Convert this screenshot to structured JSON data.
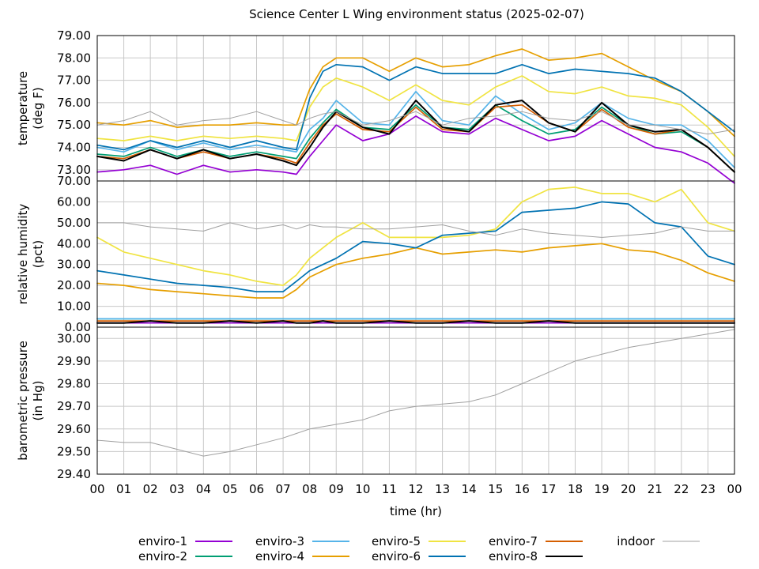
{
  "chart_data": {
    "type": "line",
    "title": "Science Center L Wing environment status (2025-02-07)",
    "xlabel": "time (hr)",
    "xlim": [
      0,
      24
    ],
    "x_ticks": [
      "00",
      "01",
      "02",
      "03",
      "04",
      "05",
      "06",
      "07",
      "08",
      "09",
      "10",
      "11",
      "12",
      "13",
      "14",
      "15",
      "16",
      "17",
      "18",
      "19",
      "20",
      "21",
      "22",
      "23",
      "00"
    ],
    "x": [
      0,
      1,
      2,
      3,
      4,
      5,
      6,
      7,
      7.5,
      8,
      8.5,
      9,
      10,
      11,
      12,
      13,
      14,
      15,
      16,
      17,
      18,
      19,
      20,
      21,
      22,
      23,
      24
    ],
    "panels": [
      {
        "ylabel": [
          "temperature",
          "(deg F)"
        ],
        "ylim": [
          72.5,
          79.0
        ],
        "y_ticks": [
          "73.00",
          "74.00",
          "75.00",
          "76.00",
          "77.00",
          "78.00",
          "79.00"
        ],
        "series": [
          {
            "name": "enviro-1",
            "color": "#9400d3",
            "values": [
              72.9,
              73.0,
              73.2,
              72.8,
              73.2,
              72.9,
              73.0,
              72.9,
              72.8,
              73.6,
              74.3,
              75.0,
              74.3,
              74.6,
              75.4,
              74.7,
              74.6,
              75.3,
              74.8,
              74.3,
              74.5,
              75.2,
              74.6,
              74.0,
              73.8,
              73.3,
              72.4
            ]
          },
          {
            "name": "enviro-2",
            "color": "#009e73",
            "values": [
              73.7,
              73.6,
              74.0,
              73.6,
              73.9,
              73.6,
              73.8,
              73.6,
              73.5,
              74.4,
              75.1,
              75.7,
              74.9,
              74.8,
              75.9,
              74.9,
              74.8,
              75.9,
              75.2,
              74.6,
              74.8,
              75.8,
              75.0,
              74.6,
              74.7,
              74.0,
              72.9
            ]
          },
          {
            "name": "enviro-3",
            "color": "#56b4e9",
            "values": [
              74.0,
              73.8,
              74.3,
              73.9,
              74.2,
              73.9,
              74.1,
              73.9,
              73.8,
              74.8,
              75.3,
              76.1,
              75.1,
              75.0,
              76.5,
              75.2,
              75.0,
              76.3,
              75.5,
              74.8,
              75.1,
              76.0,
              75.3,
              75.0,
              75.0,
              74.3,
              73.1
            ]
          },
          {
            "name": "enviro-4",
            "color": "#e69f00",
            "values": [
              75.1,
              75.0,
              75.2,
              74.9,
              75.0,
              75.0,
              75.1,
              75.0,
              75.0,
              76.6,
              77.6,
              78.0,
              78.0,
              77.4,
              78.0,
              77.6,
              77.7,
              78.1,
              78.4,
              77.9,
              78.0,
              78.2,
              77.6,
              77.0,
              76.5,
              75.6,
              74.5
            ]
          },
          {
            "name": "enviro-5",
            "color": "#f0e442",
            "values": [
              74.4,
              74.3,
              74.5,
              74.3,
              74.5,
              74.4,
              74.5,
              74.4,
              74.3,
              75.8,
              76.7,
              77.1,
              76.7,
              76.1,
              76.8,
              76.1,
              75.9,
              76.7,
              77.2,
              76.5,
              76.4,
              76.7,
              76.3,
              76.2,
              75.9,
              74.9,
              73.6
            ]
          },
          {
            "name": "enviro-6",
            "color": "#0072b2",
            "values": [
              74.1,
              73.9,
              74.3,
              74.0,
              74.3,
              74.0,
              74.3,
              74.0,
              73.9,
              76.2,
              77.4,
              77.7,
              77.6,
              77.0,
              77.6,
              77.3,
              77.3,
              77.3,
              77.7,
              77.3,
              77.5,
              77.4,
              77.3,
              77.1,
              76.5,
              75.6,
              74.7
            ]
          },
          {
            "name": "enviro-7",
            "color": "#d55e00",
            "values": [
              73.6,
              73.5,
              73.9,
              73.5,
              73.8,
              73.5,
              73.7,
              73.5,
              73.3,
              74.2,
              75.0,
              75.5,
              74.8,
              74.7,
              75.8,
              74.8,
              74.7,
              75.8,
              75.9,
              75.1,
              74.7,
              75.7,
              74.9,
              74.6,
              74.8,
              74.0,
              72.9
            ]
          },
          {
            "name": "enviro-8",
            "color": "#000000",
            "values": [
              73.6,
              73.4,
              73.9,
              73.5,
              73.9,
              73.5,
              73.7,
              73.4,
              73.2,
              74.0,
              74.9,
              75.6,
              74.9,
              74.6,
              76.1,
              74.9,
              74.7,
              75.9,
              76.1,
              75.1,
              74.7,
              76.0,
              75.0,
              74.7,
              74.8,
              74.0,
              72.9
            ]
          },
          {
            "name": "indoor",
            "color": "#a0a0a0",
            "values": [
              75.0,
              75.2,
              75.6,
              75.0,
              75.2,
              75.3,
              75.6,
              75.2,
              75.0,
              75.3,
              75.5,
              75.6,
              75.0,
              75.2,
              75.6,
              75.0,
              75.3,
              75.4,
              75.6,
              75.3,
              75.2,
              75.6,
              75.0,
              75.0,
              74.8,
              74.6,
              74.8
            ]
          }
        ]
      },
      {
        "ylabel": [
          "relative humidity",
          "(pct)"
        ],
        "ylim": [
          0,
          70
        ],
        "y_ticks": [
          "0.00",
          "10.00",
          "20.00",
          "30.00",
          "40.00",
          "50.00",
          "60.00",
          "70.00"
        ],
        "series": [
          {
            "name": "enviro-1",
            "color": "#9400d3",
            "values": [
              2,
              2,
              2,
              2,
              2,
              2,
              2,
              2,
              2,
              2,
              2,
              2,
              2,
              2,
              2,
              2,
              2,
              2,
              2,
              2,
              2,
              2,
              2,
              2,
              2,
              2,
              2
            ]
          },
          {
            "name": "enviro-2",
            "color": "#009e73",
            "values": [
              4,
              4,
              4,
              4,
              4,
              4,
              4,
              4,
              4,
              4,
              4,
              4,
              4,
              4,
              4,
              4,
              4,
              4,
              4,
              4,
              4,
              4,
              4,
              4,
              4,
              4,
              4
            ]
          },
          {
            "name": "enviro-3",
            "color": "#56b4e9",
            "values": [
              4,
              4,
              4,
              4,
              4,
              4,
              4,
              4,
              4,
              4,
              4,
              4,
              4,
              4,
              4,
              4,
              4,
              4,
              4,
              4,
              4,
              4,
              4,
              4,
              4,
              4,
              4
            ]
          },
          {
            "name": "enviro-4",
            "color": "#e69f00",
            "values": [
              21,
              20,
              18,
              17,
              16,
              15,
              14,
              14,
              18,
              24,
              27,
              30,
              33,
              35,
              38,
              35,
              36,
              37,
              36,
              38,
              39,
              40,
              37,
              36,
              32,
              26,
              22
            ]
          },
          {
            "name": "enviro-5",
            "color": "#f0e442",
            "values": [
              43,
              36,
              33,
              30,
              27,
              25,
              22,
              20,
              25,
              33,
              38,
              43,
              50,
              43,
              43,
              43,
              44,
              47,
              60,
              66,
              67,
              64,
              64,
              60,
              66,
              50,
              46
            ]
          },
          {
            "name": "enviro-6",
            "color": "#0072b2",
            "values": [
              27,
              25,
              23,
              21,
              20,
              19,
              17,
              17,
              22,
              27,
              30,
              33,
              41,
              40,
              38,
              44,
              45,
              46,
              55,
              56,
              57,
              60,
              59,
              50,
              48,
              34,
              30
            ]
          },
          {
            "name": "enviro-7",
            "color": "#d55e00",
            "values": [
              3,
              3,
              3,
              3,
              3,
              3,
              3,
              3,
              3,
              3,
              3,
              3,
              3,
              3,
              3,
              3,
              3,
              3,
              3,
              3,
              3,
              3,
              3,
              3,
              3,
              3,
              3
            ]
          },
          {
            "name": "enviro-8",
            "color": "#000000",
            "values": [
              2,
              2,
              3,
              2,
              2,
              3,
              2,
              3,
              2,
              2,
              3,
              2,
              2,
              3,
              2,
              2,
              3,
              2,
              2,
              3,
              2,
              2,
              2,
              2,
              2,
              2,
              2
            ]
          },
          {
            "name": "indoor",
            "color": "#a0a0a0",
            "values": [
              50,
              50,
              48,
              47,
              46,
              50,
              47,
              49,
              47,
              49,
              48,
              48,
              47,
              47,
              48,
              49,
              46,
              44,
              47,
              45,
              44,
              43,
              44,
              45,
              48,
              46,
              46
            ]
          }
        ]
      },
      {
        "ylabel": [
          "barometric pressure",
          "(in Hg)"
        ],
        "ylim": [
          29.4,
          30.05
        ],
        "y_ticks": [
          "29.40",
          "29.50",
          "29.60",
          "29.70",
          "29.80",
          "29.90",
          "30.00"
        ],
        "series": [
          {
            "name": "indoor",
            "color": "#a0a0a0",
            "values": [
              29.55,
              29.54,
              29.54,
              29.51,
              29.48,
              29.5,
              29.53,
              29.56,
              29.58,
              29.6,
              29.61,
              29.62,
              29.64,
              29.68,
              29.7,
              29.71,
              29.72,
              29.75,
              29.8,
              29.85,
              29.9,
              29.93,
              29.96,
              29.98,
              30.0,
              30.02,
              30.04
            ]
          }
        ]
      }
    ],
    "legend": {
      "placement": "bottom",
      "entries": [
        {
          "name": "enviro-1",
          "color": "#9400d3"
        },
        {
          "name": "enviro-2",
          "color": "#009e73"
        },
        {
          "name": "enviro-3",
          "color": "#56b4e9"
        },
        {
          "name": "enviro-4",
          "color": "#e69f00"
        },
        {
          "name": "enviro-5",
          "color": "#f0e442"
        },
        {
          "name": "enviro-6",
          "color": "#0072b2"
        },
        {
          "name": "enviro-7",
          "color": "#d55e00"
        },
        {
          "name": "enviro-8",
          "color": "#000000"
        },
        {
          "name": "indoor",
          "color": "#a0a0a0"
        }
      ]
    },
    "grid": true
  }
}
